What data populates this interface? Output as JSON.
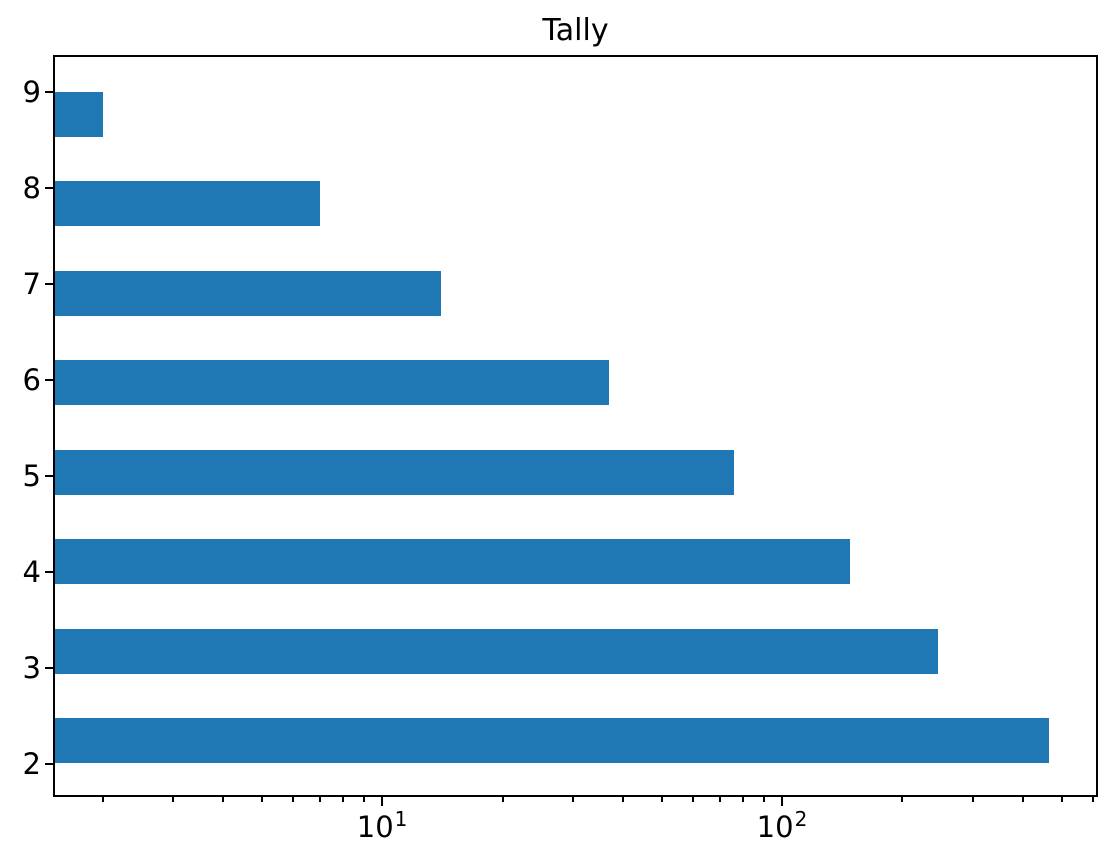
{
  "chart_data": {
    "type": "bar",
    "orientation": "horizontal",
    "title": "Tally",
    "xlabel": "",
    "ylabel": "",
    "categories": [
      "9",
      "8",
      "7",
      "6",
      "5",
      "4",
      "3",
      "2"
    ],
    "values": [
      2,
      7,
      14,
      37,
      76,
      148,
      245,
      465
    ],
    "xscale": "log",
    "xlim": [
      1.52,
      610
    ],
    "x_major_ticks": [
      {
        "value": 10,
        "mantissa": "10",
        "exponent": "1"
      },
      {
        "value": 100,
        "mantissa": "10",
        "exponent": "2"
      }
    ],
    "x_minor_ticks": [
      2,
      3,
      4,
      5,
      6,
      7,
      8,
      9,
      20,
      30,
      40,
      50,
      60,
      70,
      80,
      90,
      200,
      300,
      400,
      500,
      600
    ],
    "grid": false,
    "legend": false,
    "bar_color": "#1f77b4",
    "background_color": "#ffffff",
    "text_color": "#000000"
  }
}
